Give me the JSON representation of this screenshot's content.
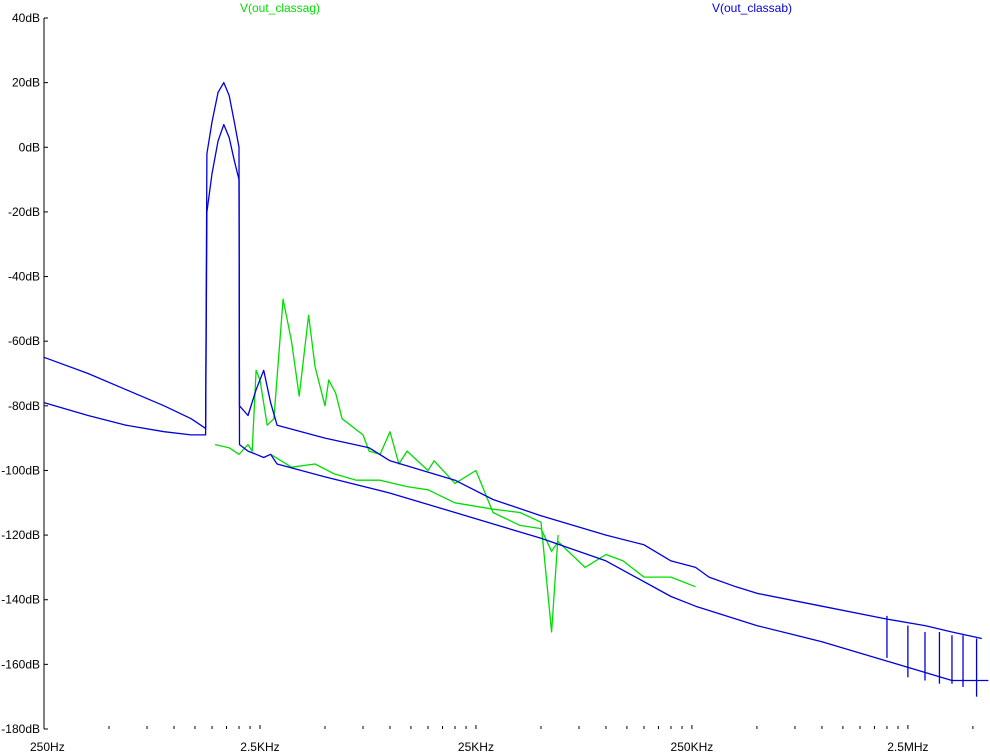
{
  "chart_data": {
    "type": "line",
    "x_scale": "log",
    "xlim": [
      250,
      6000000
    ],
    "ylim": [
      -180,
      40
    ],
    "grid": false,
    "x_ticks": [
      {
        "value": 250,
        "label": "250Hz"
      },
      {
        "value": 2500,
        "label": "2.5KHz"
      },
      {
        "value": 25000,
        "label": "25KHz"
      },
      {
        "value": 250000,
        "label": "250KHz"
      },
      {
        "value": 2500000,
        "label": "2.5MHz"
      }
    ],
    "y_ticks": [
      {
        "value": 40,
        "label": "40dB"
      },
      {
        "value": 20,
        "label": "20dB"
      },
      {
        "value": 0,
        "label": "0dB"
      },
      {
        "value": -20,
        "label": "-20dB"
      },
      {
        "value": -40,
        "label": "-40dB"
      },
      {
        "value": -60,
        "label": "-60dB"
      },
      {
        "value": -80,
        "label": "-80dB"
      },
      {
        "value": -100,
        "label": "-100dB"
      },
      {
        "value": -120,
        "label": "-120dB"
      },
      {
        "value": -140,
        "label": "-140dB"
      },
      {
        "value": -160,
        "label": "-160dB"
      },
      {
        "value": -180,
        "label": "-180dB"
      }
    ],
    "series": [
      {
        "name": "V(out_classag)",
        "color": "#00dd00",
        "traces": [
          {
            "part": "magnitude",
            "x": [
              1550,
              1800,
              2000,
              2200,
              2300,
              2350,
              2400,
              2500,
              2700,
              2900,
              3200,
              3500,
              3800,
              4200,
              4500,
              5000,
              5200,
              5600,
              6000,
              7500,
              8000,
              9000,
              10000,
              11000,
              12000,
              15000,
              16000,
              20000,
              25000,
              30000,
              40000,
              50000,
              56000,
              60000,
              80000,
              100000,
              120000,
              150000,
              200000,
              260000
            ],
            "y": [
              -92,
              -93,
              -95,
              -92,
              -94,
              -81,
              -69,
              -72,
              -86,
              -84,
              -47,
              -60,
              -77,
              -52,
              -68,
              -80,
              -72,
              -76,
              -84,
              -89,
              -94,
              -95,
              -88,
              -98,
              -94,
              -100,
              -97,
              -104,
              -100,
              -113,
              -117,
              -118,
              -125,
              -122,
              -130,
              -126,
              -128,
              -133,
              -133,
              -136
            ]
          },
          {
            "part": "floor",
            "x": [
              2800,
              3500,
              4500,
              5500,
              7000,
              9000,
              12000,
              15000,
              20000,
              30000,
              40000,
              50000,
              56000,
              60000
            ],
            "y": [
              -95,
              -99,
              -98,
              -101,
              -103,
              -103,
              -105,
              -106,
              -110,
              -112,
              -113,
              -116,
              -150,
              -120
            ]
          }
        ]
      },
      {
        "name": "V(out_classab)",
        "color": "#0000dd",
        "traces": [
          {
            "part": "upper",
            "x": [
              250,
              400,
              600,
              900,
              1200,
              1400,
              1420,
              1500,
              1600,
              1700,
              1800,
              1900,
              2000,
              2010,
              2200,
              2400,
              2600,
              2800,
              3000,
              5000,
              8000,
              10000,
              20000,
              30000,
              50000,
              100000,
              150000,
              200000,
              260000,
              300000,
              400000,
              500000,
              1000000,
              2000000,
              3000000,
              4000000,
              5500000
            ],
            "y": [
              -65,
              -70,
              -75,
              -80,
              -84,
              -87,
              -2,
              8,
              17,
              20,
              16,
              8,
              0,
              -80,
              -83,
              -75,
              -69,
              -79,
              -86,
              -90,
              -93,
              -97,
              -103,
              -109,
              -114,
              -120,
              -123,
              -128,
              -130,
              -133,
              -136,
              -138,
              -142,
              -146,
              -148,
              -150,
              -152
            ]
          },
          {
            "part": "lower",
            "x": [
              250,
              400,
              600,
              900,
              1200,
              1400,
              1420,
              1500,
              1600,
              1700,
              1800,
              1900,
              2000,
              2010,
              2200,
              2400,
              2600,
              2800,
              3000,
              5000,
              10000,
              20000,
              50000,
              100000,
              200000,
              260000,
              500000,
              1000000,
              2000000,
              4000000,
              5900000
            ],
            "y": [
              -79,
              -83,
              -86,
              -88,
              -89,
              -89,
              -20,
              -8,
              2,
              7,
              3,
              -4,
              -10,
              -92,
              -94,
              -95,
              -96,
              -95,
              -98,
              -102,
              -107,
              -113,
              -121,
              -128,
              -139,
              -142,
              -148,
              -153,
              -159,
              -165,
              -165
            ]
          },
          {
            "part": "spurs",
            "x": [
              2000000,
              2000000,
              2500000,
              2500000,
              3000000,
              3000000,
              3500000,
              3500000,
              4000000,
              4000000,
              4500000,
              4500000,
              5200000,
              5200000
            ],
            "y": [
              -145,
              -158,
              -148,
              -164,
              -150,
              -165,
              -150,
              -166,
              -151,
              -166,
              -151,
              -167,
              -152,
              -170
            ]
          }
        ]
      }
    ]
  }
}
